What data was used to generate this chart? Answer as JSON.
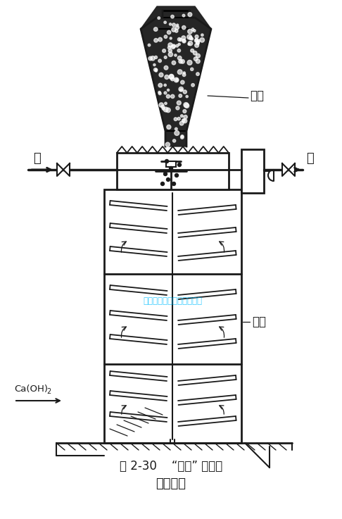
{
  "title_line1": "图 2-30    “干式” 联合式",
  "title_line2": "构造原理",
  "label_dianshi": "电石",
  "label_tongti": "桶体",
  "label_shui": "水",
  "label_qi": "气",
  "watermark": "常州骏恒焊割设备有限公司",
  "watermark_color": "#00BFFF",
  "bg_color": "#FFFFFF",
  "line_color": "#1a1a1a",
  "fig_width": 4.86,
  "fig_height": 7.37,
  "dpi": 100
}
